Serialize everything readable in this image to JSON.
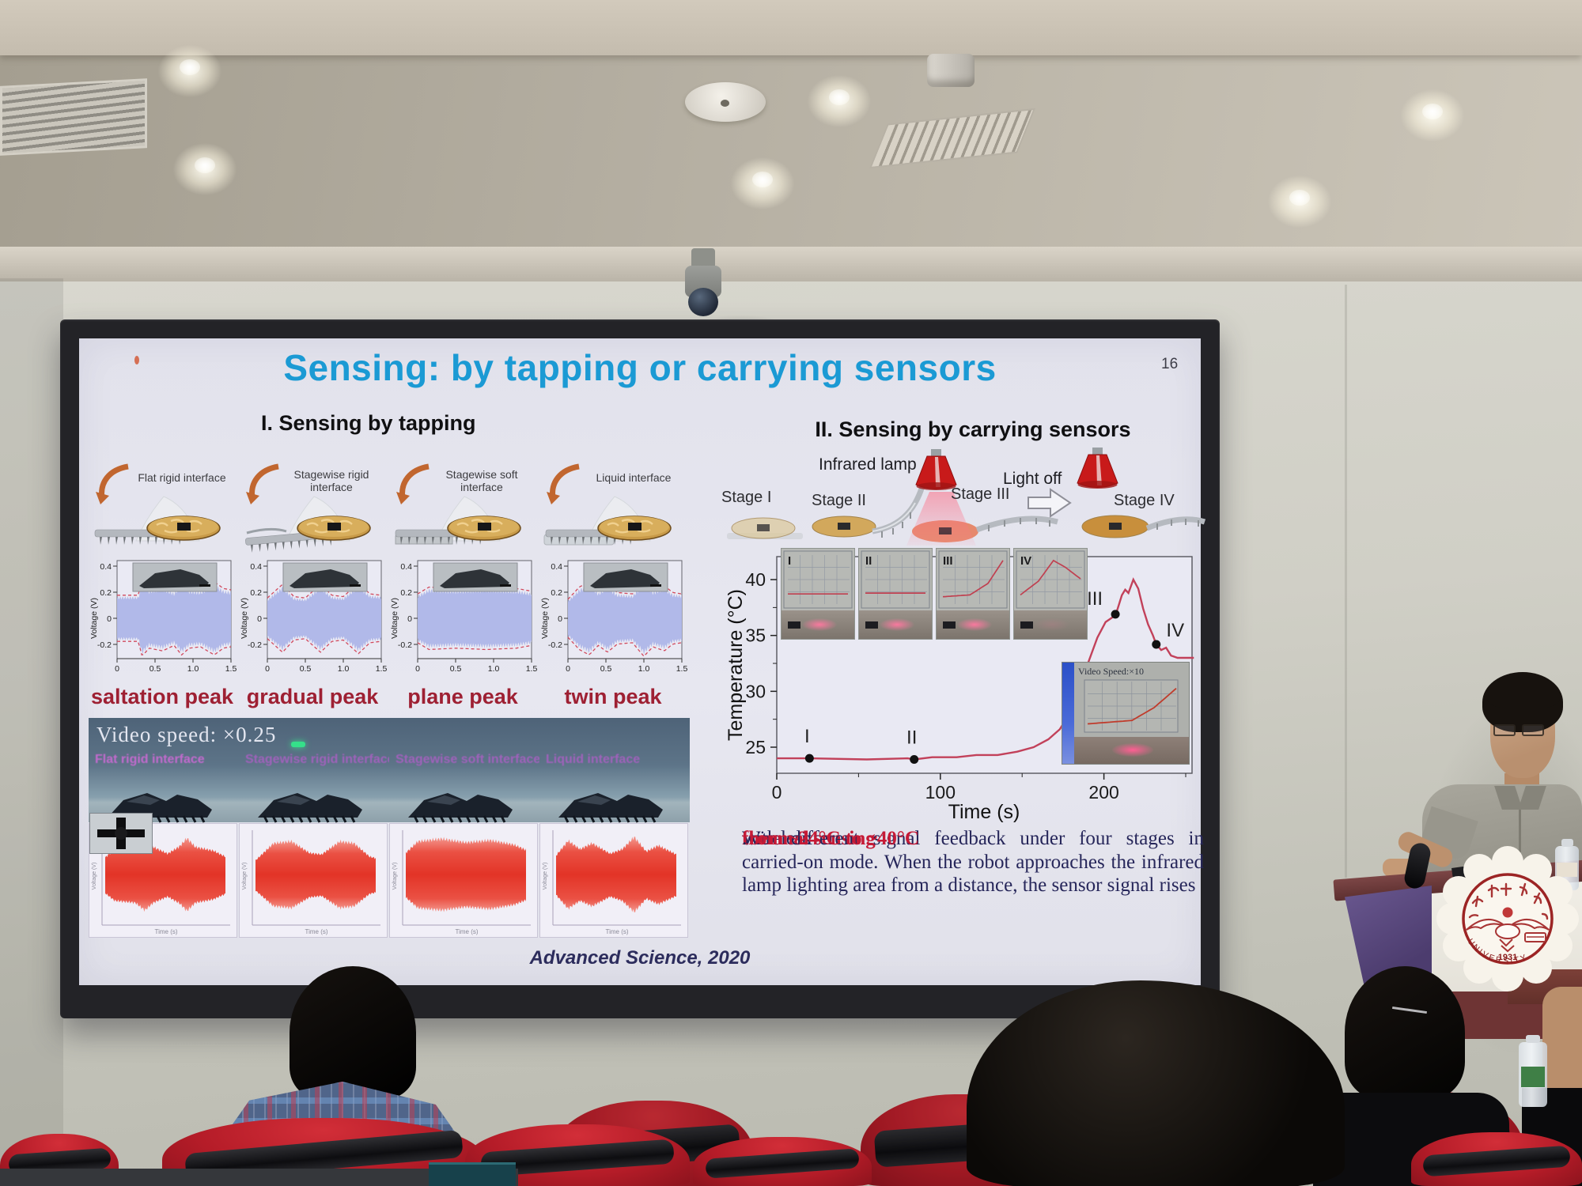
{
  "slide": {
    "title": "Sensing: by tapping or carrying sensors",
    "page_number": "16",
    "section1": {
      "header": "I. Sensing by tapping",
      "panels": [
        {
          "interface": "Flat rigid interface",
          "peak": "saltation peak"
        },
        {
          "interface": "Stagewise rigid interface",
          "peak": "gradual peak"
        },
        {
          "interface": "Stagewise soft interface",
          "peak": "plane peak"
        },
        {
          "interface": "Liquid interface",
          "peak": "twin peak"
        }
      ],
      "video": {
        "overlay": "Video speed: ×0.25",
        "captions": [
          "Flat rigid interface",
          "Stagewise rigid interface",
          "Stagewise soft interface",
          "Liquid interface"
        ]
      }
    },
    "section2": {
      "header": "II. Sensing by carrying sensors",
      "infrared_lamp_label": "Infrared lamp",
      "light_off_label": "Light off",
      "stage_labels": [
        "Stage I",
        "Stage II",
        "Stage III",
        "Stage IV"
      ],
      "inset_overlay": "Video Speed:×10",
      "description": {
        "p1": "Wireless ",
        "p2": "thermal sensing",
        "p3": " with different signal feedback under four stages in carried-on mode. When the robot approaches the infrared lamp lighting area from a distance, the sensor signal rises ",
        "p4": "from ~24°C to ~40°C",
        "p5": "."
      }
    },
    "citation": "Advanced Science, 2020"
  },
  "podium_seal": {
    "year": "1931",
    "university": "UNIVERSITY"
  },
  "colors": {
    "title_blue": "#1b9ad4",
    "peak_red": "#9e2033",
    "text_navy": "#26265a",
    "accent_red": "#c51a36",
    "waveform_blue": "#aeb6e8",
    "temp_curve": "#c2415a",
    "chair_red": "#b51c28",
    "slide_bg": "#e5e5ee"
  },
  "chart_data": [
    {
      "id": "voltage_tapping",
      "type": "area",
      "ylabel": "Voltage (V)",
      "yticks": [
        0.4,
        0.2,
        0,
        -0.2
      ],
      "xticks": [
        0,
        0.5,
        1.0,
        1.5
      ],
      "xlim": [
        0,
        1.5
      ],
      "ylim": [
        -0.32,
        0.45
      ],
      "series": [
        {
          "name": "saltation peak",
          "envelope": [
            [
              0,
              0.17
            ],
            [
              0.28,
              0.17
            ],
            [
              0.33,
              0.28
            ],
            [
              0.42,
              0.22
            ],
            [
              0.6,
              0.24
            ],
            [
              0.75,
              0.2
            ],
            [
              0.85,
              0.27
            ],
            [
              0.95,
              0.22
            ],
            [
              1.1,
              0.21
            ],
            [
              1.28,
              0.27
            ],
            [
              1.4,
              0.22
            ],
            [
              1.5,
              0.21
            ]
          ]
        },
        {
          "name": "gradual peak",
          "envelope": [
            [
              0,
              0.15
            ],
            [
              0.2,
              0.25
            ],
            [
              0.35,
              0.16
            ],
            [
              0.5,
              0.15
            ],
            [
              0.7,
              0.25
            ],
            [
              0.85,
              0.17
            ],
            [
              1.0,
              0.16
            ],
            [
              1.2,
              0.26
            ],
            [
              1.35,
              0.18
            ],
            [
              1.5,
              0.17
            ]
          ]
        },
        {
          "name": "plane peak",
          "envelope": [
            [
              0,
              0.18
            ],
            [
              0.15,
              0.23
            ],
            [
              0.5,
              0.22
            ],
            [
              0.9,
              0.23
            ],
            [
              1.3,
              0.22
            ],
            [
              1.5,
              0.2
            ]
          ]
        },
        {
          "name": "twin peak",
          "envelope": [
            [
              0,
              0.14
            ],
            [
              0.15,
              0.23
            ],
            [
              0.28,
              0.27
            ],
            [
              0.4,
              0.2
            ],
            [
              0.52,
              0.25
            ],
            [
              0.65,
              0.19
            ],
            [
              0.85,
              0.18
            ],
            [
              1.0,
              0.28
            ],
            [
              1.12,
              0.21
            ],
            [
              1.27,
              0.24
            ],
            [
              1.38,
              0.19
            ],
            [
              1.5,
              0.18
            ]
          ]
        }
      ]
    },
    {
      "id": "temperature_carrying",
      "type": "line",
      "xlabel": "Time (s)",
      "ylabel": "Temperature (°C)",
      "xticks": [
        0,
        100,
        200
      ],
      "yticks": [
        25,
        30,
        35,
        40
      ],
      "xlim": [
        0,
        255
      ],
      "ylim": [
        22.5,
        42
      ],
      "points": [
        [
          0,
          24
        ],
        [
          20,
          24
        ],
        [
          55,
          23.9
        ],
        [
          80,
          24
        ],
        [
          84,
          23.9
        ],
        [
          95,
          24.1
        ],
        [
          110,
          24.1
        ],
        [
          122,
          24.3
        ],
        [
          135,
          24.3
        ],
        [
          147,
          24.6
        ],
        [
          157,
          25
        ],
        [
          166,
          25.7
        ],
        [
          173,
          26.6
        ],
        [
          179,
          28
        ],
        [
          185,
          30
        ],
        [
          190,
          32.4
        ],
        [
          196,
          34.8
        ],
        [
          201,
          36.2
        ],
        [
          205,
          36.6
        ],
        [
          208,
          37.2
        ],
        [
          211,
          38.6
        ],
        [
          213,
          39.1
        ],
        [
          215,
          38.8
        ],
        [
          218,
          40
        ],
        [
          221,
          39.2
        ],
        [
          224,
          37.4
        ],
        [
          227,
          36
        ],
        [
          230,
          35
        ],
        [
          232,
          34.2
        ],
        [
          235,
          33.7
        ],
        [
          238,
          33.9
        ],
        [
          241,
          33.2
        ],
        [
          245,
          33
        ],
        [
          255,
          33
        ]
      ],
      "markers": [
        {
          "label": "I",
          "t": 20,
          "T": 24
        },
        {
          "label": "II",
          "t": 84,
          "T": 23.9
        },
        {
          "label": "III",
          "t": 207,
          "T": 36.9
        },
        {
          "label": "IV",
          "t": 232,
          "T": 34.2
        }
      ],
      "insets": [
        {
          "label": "I",
          "curve": [
            [
              0,
              0.22
            ],
            [
              1,
              0.22
            ]
          ]
        },
        {
          "label": "II",
          "curve": [
            [
              0,
              0.24
            ],
            [
              1,
              0.24
            ]
          ]
        },
        {
          "label": "III",
          "curve": [
            [
              0,
              0.16
            ],
            [
              0.45,
              0.2
            ],
            [
              0.75,
              0.45
            ],
            [
              1,
              0.95
            ]
          ]
        },
        {
          "label": "IV",
          "curve": [
            [
              0,
              0.2
            ],
            [
              0.3,
              0.5
            ],
            [
              0.55,
              0.95
            ],
            [
              0.75,
              0.8
            ],
            [
              1,
              0.55
            ]
          ]
        }
      ],
      "inset_video_curve": [
        [
          0,
          0.12
        ],
        [
          0.5,
          0.2
        ],
        [
          0.75,
          0.5
        ],
        [
          1,
          0.95
        ]
      ]
    },
    {
      "id": "tapping_response_video",
      "type": "area",
      "xlabel": "Time (s)",
      "series": [
        {
          "name": "saltation",
          "envelope": [
            [
              0,
              0.5
            ],
            [
              0.08,
              0.72
            ],
            [
              0.25,
              0.78
            ],
            [
              0.33,
              1.0
            ],
            [
              0.4,
              0.78
            ],
            [
              0.52,
              0.6
            ],
            [
              0.62,
              0.8
            ],
            [
              0.68,
              1.02
            ],
            [
              0.75,
              0.78
            ],
            [
              0.9,
              0.68
            ],
            [
              1,
              0.52
            ]
          ]
        },
        {
          "name": "gradual",
          "envelope": [
            [
              0,
              0.42
            ],
            [
              0.15,
              0.88
            ],
            [
              0.3,
              0.93
            ],
            [
              0.45,
              0.62
            ],
            [
              0.55,
              0.58
            ],
            [
              0.7,
              0.93
            ],
            [
              0.82,
              0.88
            ],
            [
              0.95,
              0.52
            ],
            [
              1,
              0.48
            ]
          ]
        },
        {
          "name": "plane",
          "envelope": [
            [
              0,
              0.62
            ],
            [
              0.1,
              0.93
            ],
            [
              0.3,
              1.0
            ],
            [
              0.5,
              0.9
            ],
            [
              0.7,
              0.96
            ],
            [
              0.9,
              0.84
            ],
            [
              1,
              0.7
            ]
          ]
        },
        {
          "name": "twin",
          "envelope": [
            [
              0,
              0.55
            ],
            [
              0.1,
              0.95
            ],
            [
              0.2,
              0.72
            ],
            [
              0.3,
              0.88
            ],
            [
              0.45,
              0.6
            ],
            [
              0.55,
              0.72
            ],
            [
              0.65,
              1.05
            ],
            [
              0.75,
              0.66
            ],
            [
              0.85,
              0.82
            ],
            [
              1,
              0.58
            ]
          ]
        }
      ]
    }
  ]
}
